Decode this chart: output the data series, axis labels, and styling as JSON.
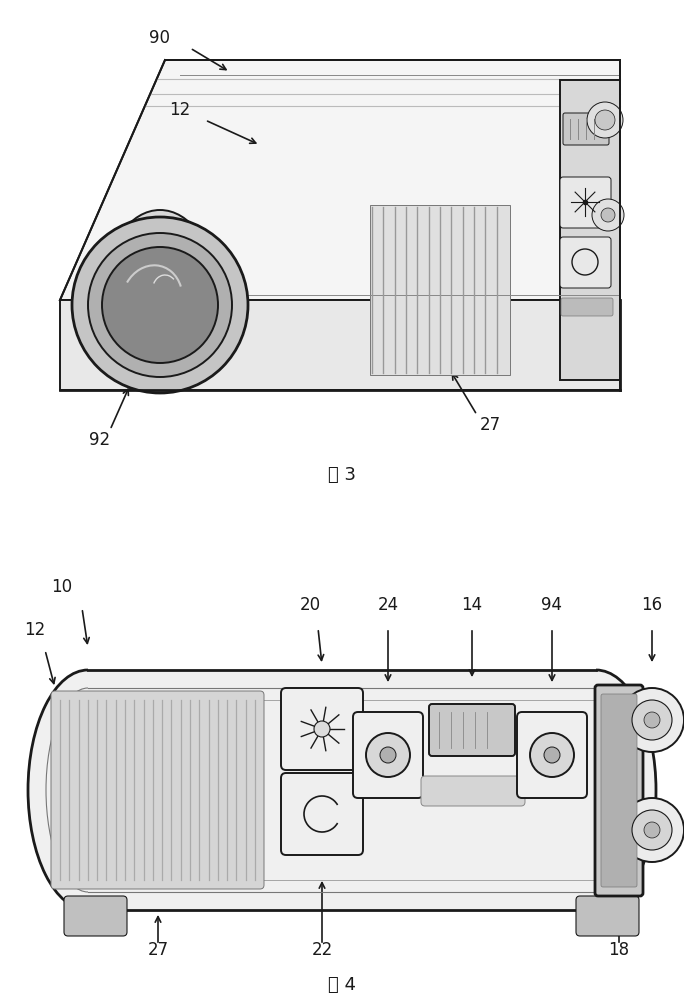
{
  "bg_color": "#ffffff",
  "lc": "#1a1a1a",
  "fig3_label": "图 3",
  "fig4_label": "图 4",
  "lw": 1.4,
  "lw_thin": 0.7,
  "lw_thick": 2.0,
  "gray_top": "#f0f0f0",
  "gray_front": "#e0e0e0",
  "gray_side": "#d0d0d0",
  "gray_vent": "#c0c0c0",
  "gray_dark": "#999999"
}
